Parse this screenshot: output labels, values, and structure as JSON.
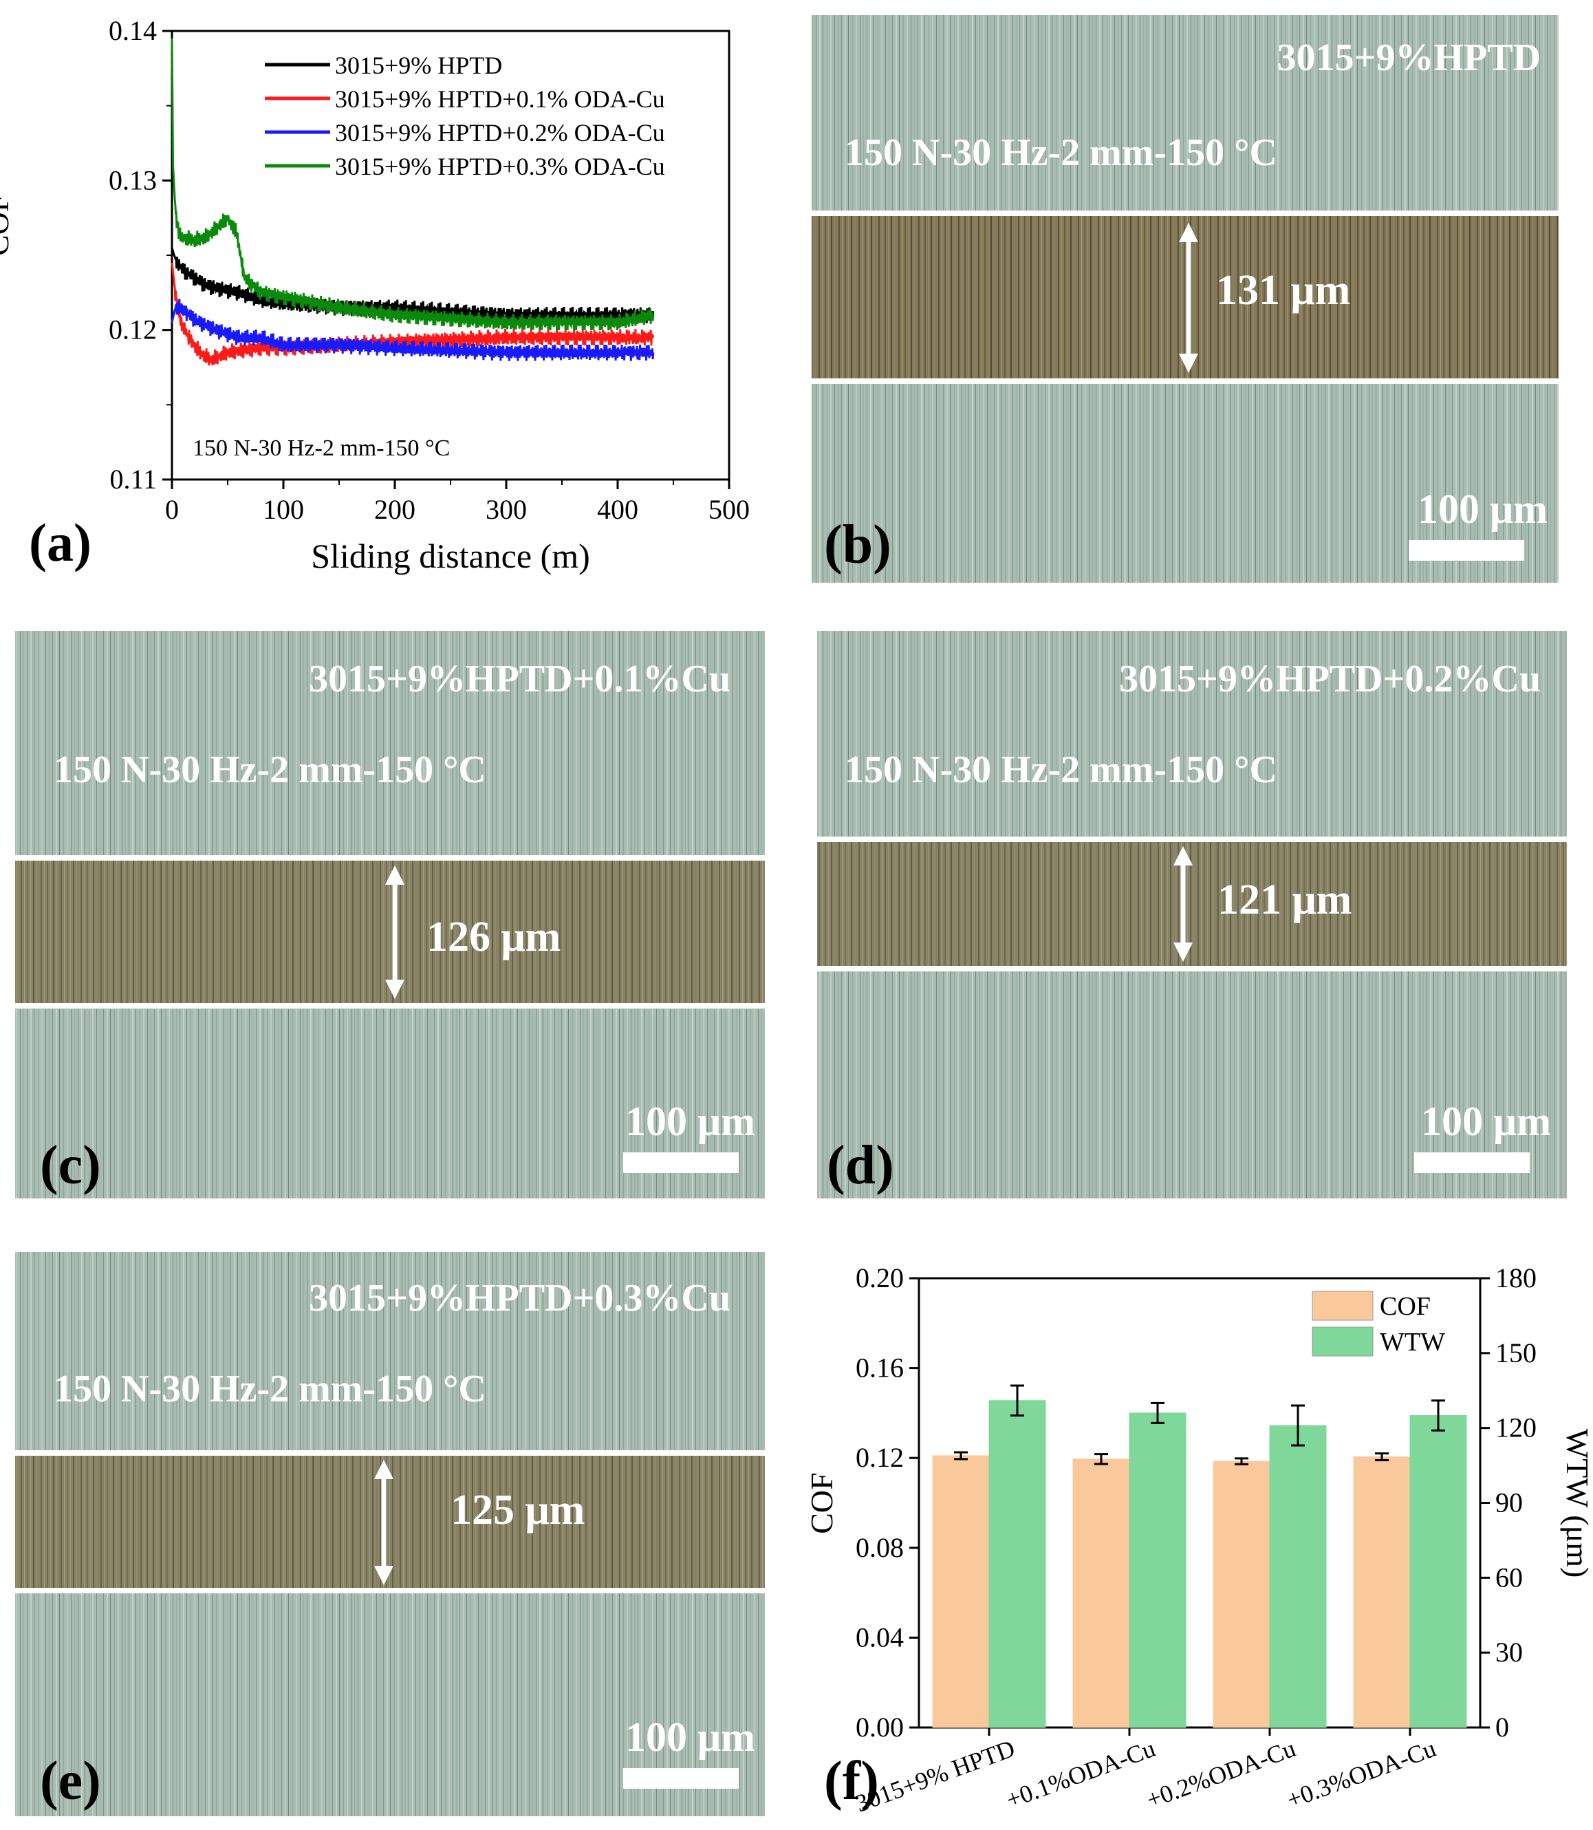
{
  "colors": {
    "black": "#000000",
    "red": "#ff1a1a",
    "blue": "#1a1aff",
    "green": "#0a8a0a",
    "cof_bar": "#f9c89b",
    "wtw_bar": "#7fd89a",
    "steel": "#9fb3a8",
    "scar": "#7a6e4e"
  },
  "panel_a": {
    "letter": "(a)",
    "annotation": "150 N-30 Hz-2 mm-150 °C"
  },
  "panel_b": {
    "letter": "(b)",
    "title": "3015+9%HPTD",
    "condition": "150 N-30 Hz-2 mm-150 °C",
    "width_label": "131 μm",
    "scale_label": "100 μm"
  },
  "panel_c": {
    "letter": "(c)",
    "title": "3015+9%HPTD+0.1%Cu",
    "condition": "150 N-30 Hz-2 mm-150 °C",
    "width_label": "126 μm",
    "scale_label": "100 μm"
  },
  "panel_d": {
    "letter": "(d)",
    "title": "3015+9%HPTD+0.2%Cu",
    "condition": "150 N-30 Hz-2 mm-150 °C",
    "width_label": "121 μm",
    "scale_label": "100 μm"
  },
  "panel_e": {
    "letter": "(e)",
    "title": "3015+9%HPTD+0.3%Cu",
    "condition": "150 N-30 Hz-2 mm-150 °C",
    "width_label": "125 μm",
    "scale_label": "100 μm"
  },
  "panel_f": {
    "letter": "(f)"
  },
  "chart_data": [
    {
      "type": "line",
      "title": "",
      "xlabel": "Sliding distance (m)",
      "ylabel": "COF",
      "xlim": [
        0,
        500
      ],
      "ylim": [
        0.11,
        0.14
      ],
      "xticks": [
        0,
        100,
        200,
        300,
        400,
        500
      ],
      "xtick_labels": [
        "0",
        "100",
        "200",
        "300",
        "400",
        "500"
      ],
      "yticks": [
        0.11,
        0.12,
        0.13,
        0.14
      ],
      "ytick_labels": [
        "0.11",
        "0.12",
        "0.13",
        "0.14"
      ],
      "legend_position": "top-right",
      "series": [
        {
          "name": "3015+9% HPTD",
          "color": "#000000",
          "x": [
            0,
            2,
            5,
            10,
            20,
            30,
            40,
            60,
            80,
            100,
            150,
            200,
            300,
            400,
            432
          ],
          "y": [
            0.1255,
            0.125,
            0.1245,
            0.124,
            0.1235,
            0.123,
            0.1228,
            0.1225,
            0.122,
            0.1218,
            0.1215,
            0.1215,
            0.121,
            0.121,
            0.121
          ]
        },
        {
          "name": "3015+9% HPTD+0.1% ODA-Cu",
          "color": "#ff1a1a",
          "x": [
            0,
            3,
            8,
            15,
            25,
            35,
            50,
            80,
            100,
            150,
            200,
            300,
            400,
            432
          ],
          "y": [
            0.1245,
            0.1225,
            0.1205,
            0.1195,
            0.1185,
            0.118,
            0.1185,
            0.1188,
            0.1188,
            0.119,
            0.1192,
            0.1195,
            0.1195,
            0.1195
          ]
        },
        {
          "name": "3015+9% HPTD+0.2% ODA-Cu",
          "color": "#1a1aff",
          "x": [
            0,
            3,
            8,
            15,
            25,
            40,
            60,
            80,
            100,
            150,
            200,
            300,
            400,
            432
          ],
          "y": [
            0.1205,
            0.1215,
            0.1215,
            0.121,
            0.1205,
            0.12,
            0.1195,
            0.1195,
            0.119,
            0.119,
            0.1188,
            0.1185,
            0.1185,
            0.1185
          ]
        },
        {
          "name": "3015+9% HPTD+0.3% ODA-Cu",
          "color": "#0a8a0a",
          "x": [
            0,
            1,
            3,
            6,
            10,
            20,
            30,
            40,
            50,
            58,
            65,
            80,
            100,
            150,
            200,
            300,
            400,
            432
          ],
          "y": [
            0.1395,
            0.131,
            0.128,
            0.1265,
            0.1262,
            0.126,
            0.1262,
            0.1268,
            0.1275,
            0.1265,
            0.1235,
            0.1225,
            0.1222,
            0.1215,
            0.121,
            0.1205,
            0.1205,
            0.121
          ]
        }
      ]
    },
    {
      "type": "bar",
      "title": "",
      "xlabel": "",
      "ylabel": "COF",
      "ylabel_right": "WTW (μm)",
      "ylim": [
        0,
        0.2
      ],
      "ylim_right": [
        0,
        180
      ],
      "yticks": [
        0.0,
        0.04,
        0.08,
        0.12,
        0.16,
        0.2
      ],
      "ytick_labels": [
        "0.00",
        "0.04",
        "0.08",
        "0.12",
        "0.16",
        "0.20"
      ],
      "yticks_right": [
        0,
        30,
        60,
        90,
        120,
        150,
        180
      ],
      "ytick_labels_right": [
        "0",
        "30",
        "60",
        "90",
        "120",
        "150",
        "180"
      ],
      "categories": [
        "3015+9% HPTD",
        "+0.1%ODA-Cu",
        "+0.2%ODA-Cu",
        "+0.3%ODA-Cu"
      ],
      "legend_position": "top-right",
      "series": [
        {
          "name": "COF",
          "axis": "left",
          "color": "#f9c89b",
          "values": [
            0.121,
            0.1195,
            0.1185,
            0.1205
          ],
          "errors": [
            0.0015,
            0.0022,
            0.0013,
            0.0015
          ]
        },
        {
          "name": "WTW",
          "axis": "right",
          "color": "#7fd89a",
          "values": [
            131,
            126,
            121,
            125
          ],
          "errors": [
            6,
            4,
            8,
            6
          ]
        }
      ]
    }
  ]
}
